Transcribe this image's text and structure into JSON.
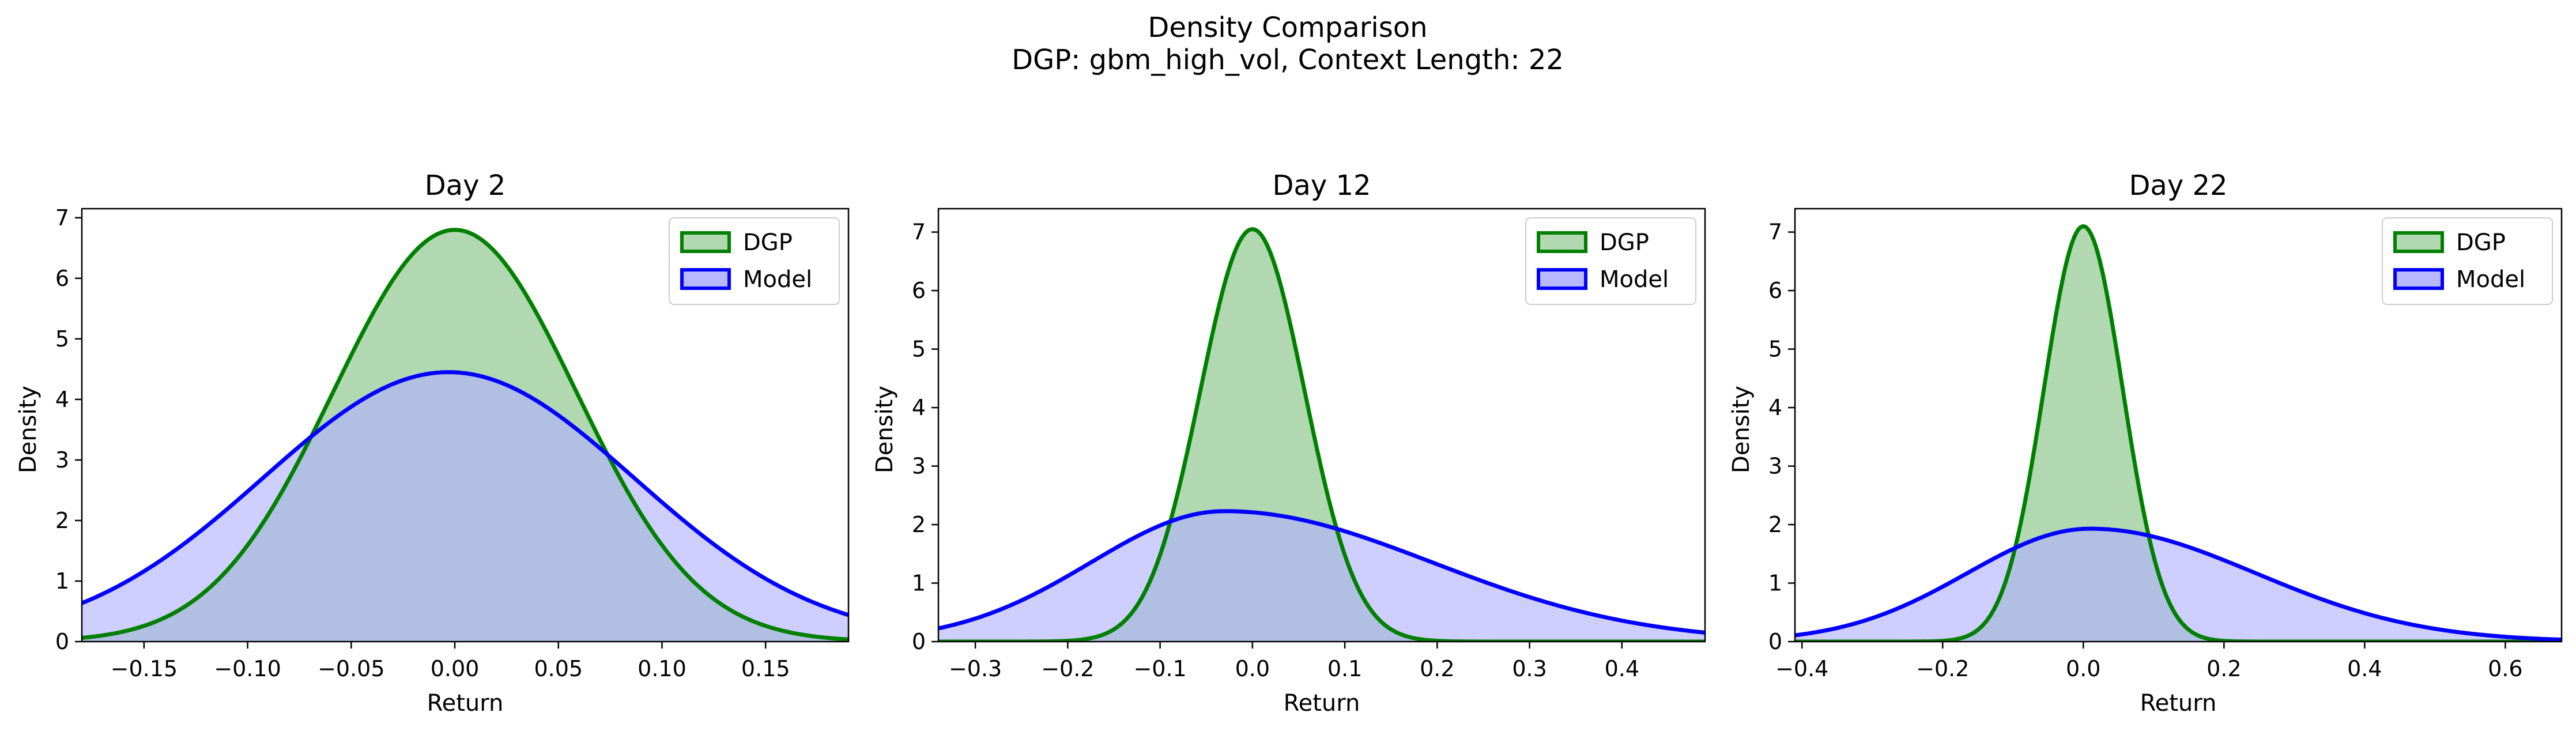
{
  "figure": {
    "title": "Density Comparison",
    "subtitle": "DGP: gbm_high_vol, Context Length: 22"
  },
  "chart_data": [
    {
      "type": "area",
      "title": "Day 2",
      "xlabel": "Return",
      "ylabel": "Density",
      "xlim": [
        -0.18,
        0.19
      ],
      "ylim": [
        0,
        7.15
      ],
      "xticks": [
        -0.15,
        -0.1,
        -0.05,
        0.0,
        0.05,
        0.1,
        0.15
      ],
      "xtick_labels": [
        "−0.15",
        "−0.10",
        "−0.05",
        "0.00",
        "0.05",
        "0.10",
        "0.15"
      ],
      "yticks": [
        0,
        1,
        2,
        3,
        4,
        5,
        6,
        7
      ],
      "ytick_labels": [
        "0",
        "1",
        "2",
        "3",
        "4",
        "5",
        "6",
        "7"
      ],
      "legend": "top-right",
      "series": [
        {
          "name": "DGP",
          "color": "#008000",
          "fill": "#b2d8b2",
          "peak_x": 0.0,
          "peak_y": 6.8,
          "sigma": 0.0587
        },
        {
          "name": "Model",
          "color": "#0000ff",
          "fill": "#b0b0ff",
          "peak_x": -0.003,
          "peak_y": 4.45,
          "sigma": 0.0897
        }
      ]
    },
    {
      "type": "area",
      "title": "Day 12",
      "xlabel": "Return",
      "ylabel": "Density",
      "xlim": [
        -0.34,
        0.49
      ],
      "ylim": [
        0,
        7.4
      ],
      "xticks": [
        -0.3,
        -0.2,
        -0.1,
        0.0,
        0.1,
        0.2,
        0.3,
        0.4
      ],
      "xtick_labels": [
        "−0.3",
        "−0.2",
        "−0.1",
        "0.0",
        "0.1",
        "0.2",
        "0.3",
        "0.4"
      ],
      "yticks": [
        0,
        1,
        2,
        3,
        4,
        5,
        6,
        7
      ],
      "ytick_labels": [
        "0",
        "1",
        "2",
        "3",
        "4",
        "5",
        "6",
        "7"
      ],
      "legend": "top-right",
      "series": [
        {
          "name": "DGP",
          "color": "#008000",
          "fill": "#b2d8b2",
          "peak_x": 0.0,
          "peak_y": 7.05,
          "sigma": 0.0566
        },
        {
          "name": "Model",
          "color": "#0000ff",
          "fill": "#b0b0ff",
          "peak_x": -0.03,
          "peak_y": 2.23,
          "sigma_left": 0.145,
          "sigma_right": 0.225
        }
      ]
    },
    {
      "type": "area",
      "title": "Day 22",
      "xlabel": "Return",
      "ylabel": "Density",
      "xlim": [
        -0.41,
        0.68
      ],
      "ylim": [
        0,
        7.4
      ],
      "xticks": [
        -0.4,
        -0.2,
        0.0,
        0.2,
        0.4,
        0.6
      ],
      "xtick_labels": [
        "−0.4",
        "−0.2",
        "0.0",
        "0.2",
        "0.4",
        "0.6"
      ],
      "yticks": [
        0,
        1,
        2,
        3,
        4,
        5,
        6,
        7
      ],
      "ytick_labels": [
        "0",
        "1",
        "2",
        "3",
        "4",
        "5",
        "6",
        "7"
      ],
      "legend": "top-right",
      "series": [
        {
          "name": "DGP",
          "color": "#008000",
          "fill": "#b2d8b2",
          "peak_x": 0.0,
          "peak_y": 7.1,
          "sigma": 0.0562
        },
        {
          "name": "Model",
          "color": "#0000ff",
          "fill": "#b0b0ff",
          "peak_x": 0.01,
          "peak_y": 1.93,
          "sigma_left": 0.175,
          "sigma_right": 0.235
        }
      ]
    }
  ]
}
